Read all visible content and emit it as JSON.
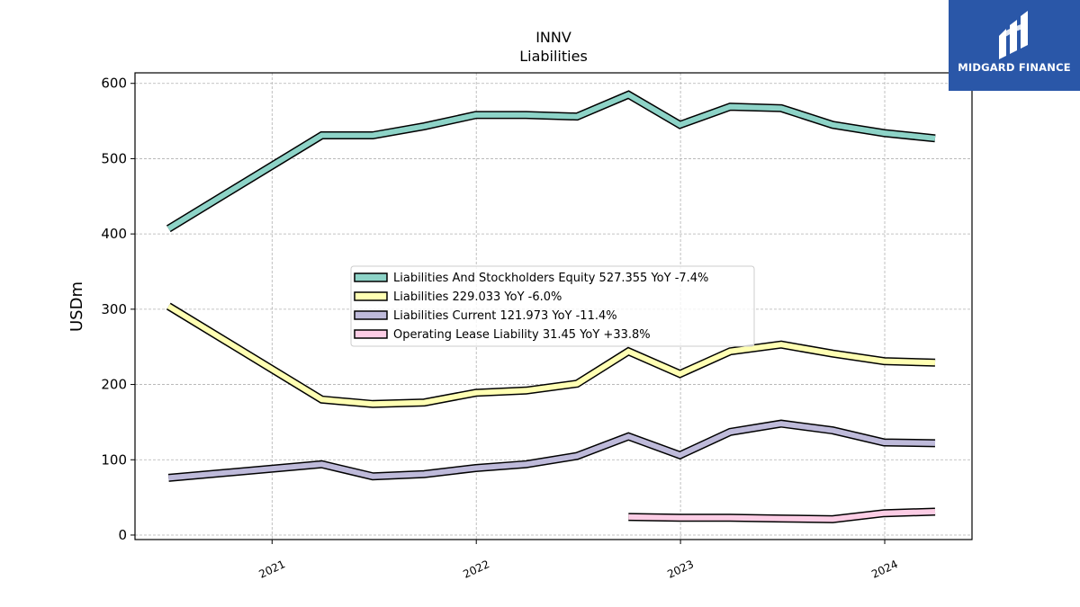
{
  "brand": {
    "name": "MIDGARD FINANCE",
    "icon": "midgard-logo-icon",
    "color": "#2a57a8"
  },
  "chart_data": {
    "type": "line",
    "title": "INNV",
    "subtitle": "Liabilities",
    "xlabel": "",
    "ylabel": "USDm",
    "xlim": [
      "2020-05-01",
      "2024-06-05"
    ],
    "ylim": [
      -6,
      614
    ],
    "xticks": [
      {
        "date": "2021-01-01",
        "label": "2021"
      },
      {
        "date": "2022-01-01",
        "label": "2022"
      },
      {
        "date": "2023-01-01",
        "label": "2023"
      },
      {
        "date": "2024-01-01",
        "label": "2024"
      }
    ],
    "yticks": [
      0,
      100,
      200,
      300,
      400,
      500,
      600
    ],
    "grid": true,
    "legend_position": "center",
    "series": [
      {
        "name": "Liabilities And Stockholders Equity",
        "legend": "Liabilities And Stockholders Equity  527.355 YoY -7.4%",
        "color": "#8dd3c7",
        "points": [
          [
            "2020-06-30",
            407
          ],
          [
            "2021-03-31",
            531
          ],
          [
            "2021-06-30",
            531
          ],
          [
            "2021-09-30",
            543
          ],
          [
            "2021-12-31",
            558
          ],
          [
            "2022-03-31",
            558
          ],
          [
            "2022-06-30",
            556
          ],
          [
            "2022-09-30",
            585
          ],
          [
            "2022-12-31",
            545
          ],
          [
            "2023-03-31",
            569
          ],
          [
            "2023-06-30",
            567
          ],
          [
            "2023-09-30",
            545
          ],
          [
            "2023-12-31",
            534
          ],
          [
            "2024-03-31",
            527
          ]
        ]
      },
      {
        "name": "Liabilities",
        "legend": "Liabilities  229.033 YoY -6.0%",
        "color": "#ffffb3",
        "points": [
          [
            "2020-06-30",
            304
          ],
          [
            "2021-03-31",
            180
          ],
          [
            "2021-06-30",
            174
          ],
          [
            "2021-09-30",
            176
          ],
          [
            "2021-12-31",
            189
          ],
          [
            "2022-03-31",
            192
          ],
          [
            "2022-06-30",
            201
          ],
          [
            "2022-09-30",
            244
          ],
          [
            "2022-12-31",
            214
          ],
          [
            "2023-03-31",
            244
          ],
          [
            "2023-06-30",
            253
          ],
          [
            "2023-09-30",
            241
          ],
          [
            "2023-12-31",
            231
          ],
          [
            "2024-03-31",
            229
          ]
        ]
      },
      {
        "name": "Liabilities Current",
        "legend": "Liabilities Current  121.973 YoY -11.4%",
        "color": "#bebada",
        "points": [
          [
            "2020-06-30",
            76
          ],
          [
            "2021-03-31",
            94
          ],
          [
            "2021-06-30",
            78
          ],
          [
            "2021-09-30",
            81
          ],
          [
            "2021-12-31",
            89
          ],
          [
            "2022-03-31",
            94
          ],
          [
            "2022-06-30",
            105
          ],
          [
            "2022-09-30",
            131
          ],
          [
            "2022-12-31",
            106
          ],
          [
            "2023-03-31",
            137
          ],
          [
            "2023-06-30",
            148
          ],
          [
            "2023-09-30",
            139
          ],
          [
            "2023-12-31",
            123
          ],
          [
            "2024-03-31",
            122
          ]
        ]
      },
      {
        "name": "Operating Lease Liability",
        "legend": "Operating Lease Liability  31.45 YoY +33.8%",
        "color": "#fccde5",
        "points": [
          [
            "2022-09-30",
            24
          ],
          [
            "2022-12-31",
            23
          ],
          [
            "2023-03-31",
            23
          ],
          [
            "2023-06-30",
            22
          ],
          [
            "2023-09-30",
            21
          ],
          [
            "2023-12-31",
            29
          ],
          [
            "2024-03-31",
            31
          ]
        ]
      }
    ]
  }
}
